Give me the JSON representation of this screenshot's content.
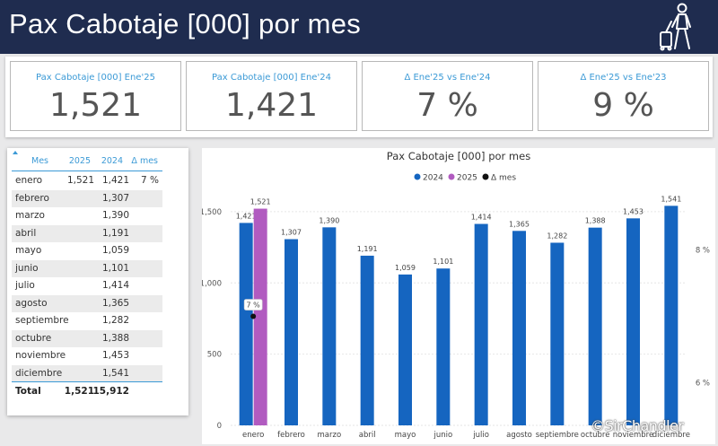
{
  "header": {
    "title": "Pax Cabotaje [000] por mes"
  },
  "kpis": [
    {
      "label": "Pax Cabotaje [000] Ene'25",
      "value": "1,521"
    },
    {
      "label": "Pax Cabotaje [000] Ene'24",
      "value": "1,421"
    },
    {
      "label": "Δ Ene'25 vs Ene'24",
      "value": "7 %"
    },
    {
      "label": "Δ Ene'25 vs Ene'23",
      "value": "9 %"
    }
  ],
  "table": {
    "headers": {
      "mes": "Mes",
      "y2025": "2025",
      "y2024": "2024",
      "delta": "Δ mes"
    },
    "rows": [
      {
        "mes": "enero",
        "y2025": "1,521",
        "y2024": "1,421",
        "delta": "7 %"
      },
      {
        "mes": "febrero",
        "y2025": "",
        "y2024": "1,307",
        "delta": ""
      },
      {
        "mes": "marzo",
        "y2025": "",
        "y2024": "1,390",
        "delta": ""
      },
      {
        "mes": "abril",
        "y2025": "",
        "y2024": "1,191",
        "delta": ""
      },
      {
        "mes": "mayo",
        "y2025": "",
        "y2024": "1,059",
        "delta": ""
      },
      {
        "mes": "junio",
        "y2025": "",
        "y2024": "1,101",
        "delta": ""
      },
      {
        "mes": "julio",
        "y2025": "",
        "y2024": "1,414",
        "delta": ""
      },
      {
        "mes": "agosto",
        "y2025": "",
        "y2024": "1,365",
        "delta": ""
      },
      {
        "mes": "septiembre",
        "y2025": "",
        "y2024": "1,282",
        "delta": ""
      },
      {
        "mes": "octubre",
        "y2025": "",
        "y2024": "1,388",
        "delta": ""
      },
      {
        "mes": "noviembre",
        "y2025": "",
        "y2024": "1,453",
        "delta": ""
      },
      {
        "mes": "diciembre",
        "y2025": "",
        "y2024": "1,541",
        "delta": ""
      }
    ],
    "total": {
      "mes": "Total",
      "y2025": "1,521",
      "y2024": "15,912",
      "delta": ""
    }
  },
  "chart_data": {
    "type": "bar",
    "title": "Pax Cabotaje [000] por mes",
    "legend_position": "top-center",
    "categories": [
      "enero",
      "febrero",
      "marzo",
      "abril",
      "mayo",
      "junio",
      "julio",
      "agosto",
      "septiembre",
      "octubre",
      "noviembre",
      "diciembre"
    ],
    "series": [
      {
        "name": "2024",
        "color": "#1565c0",
        "values": [
          1421,
          1307,
          1390,
          1191,
          1059,
          1101,
          1414,
          1365,
          1282,
          1388,
          1453,
          1541
        ]
      },
      {
        "name": "2025",
        "color": "#b15bc0",
        "values": [
          1521,
          null,
          null,
          null,
          null,
          null,
          null,
          null,
          null,
          null,
          null,
          null
        ]
      },
      {
        "name": "Δ mes",
        "color": "#111111",
        "type": "scatter",
        "axis": "right",
        "values": [
          7,
          null,
          null,
          null,
          null,
          null,
          null,
          null,
          null,
          null,
          null,
          null
        ],
        "labels": [
          "7 %"
        ]
      }
    ],
    "ylim": [
      0,
      1600
    ],
    "yticks": [
      0,
      500,
      1000,
      1500
    ],
    "ytick_labels": [
      "0",
      "500",
      "1,000",
      "1,500"
    ],
    "y2lim": [
      5.36,
      8.79
    ],
    "y2ticks": [
      6,
      8
    ],
    "y2tick_labels": [
      "6 %",
      "8 %"
    ],
    "grid": true
  },
  "watermark": "©SirChandler"
}
